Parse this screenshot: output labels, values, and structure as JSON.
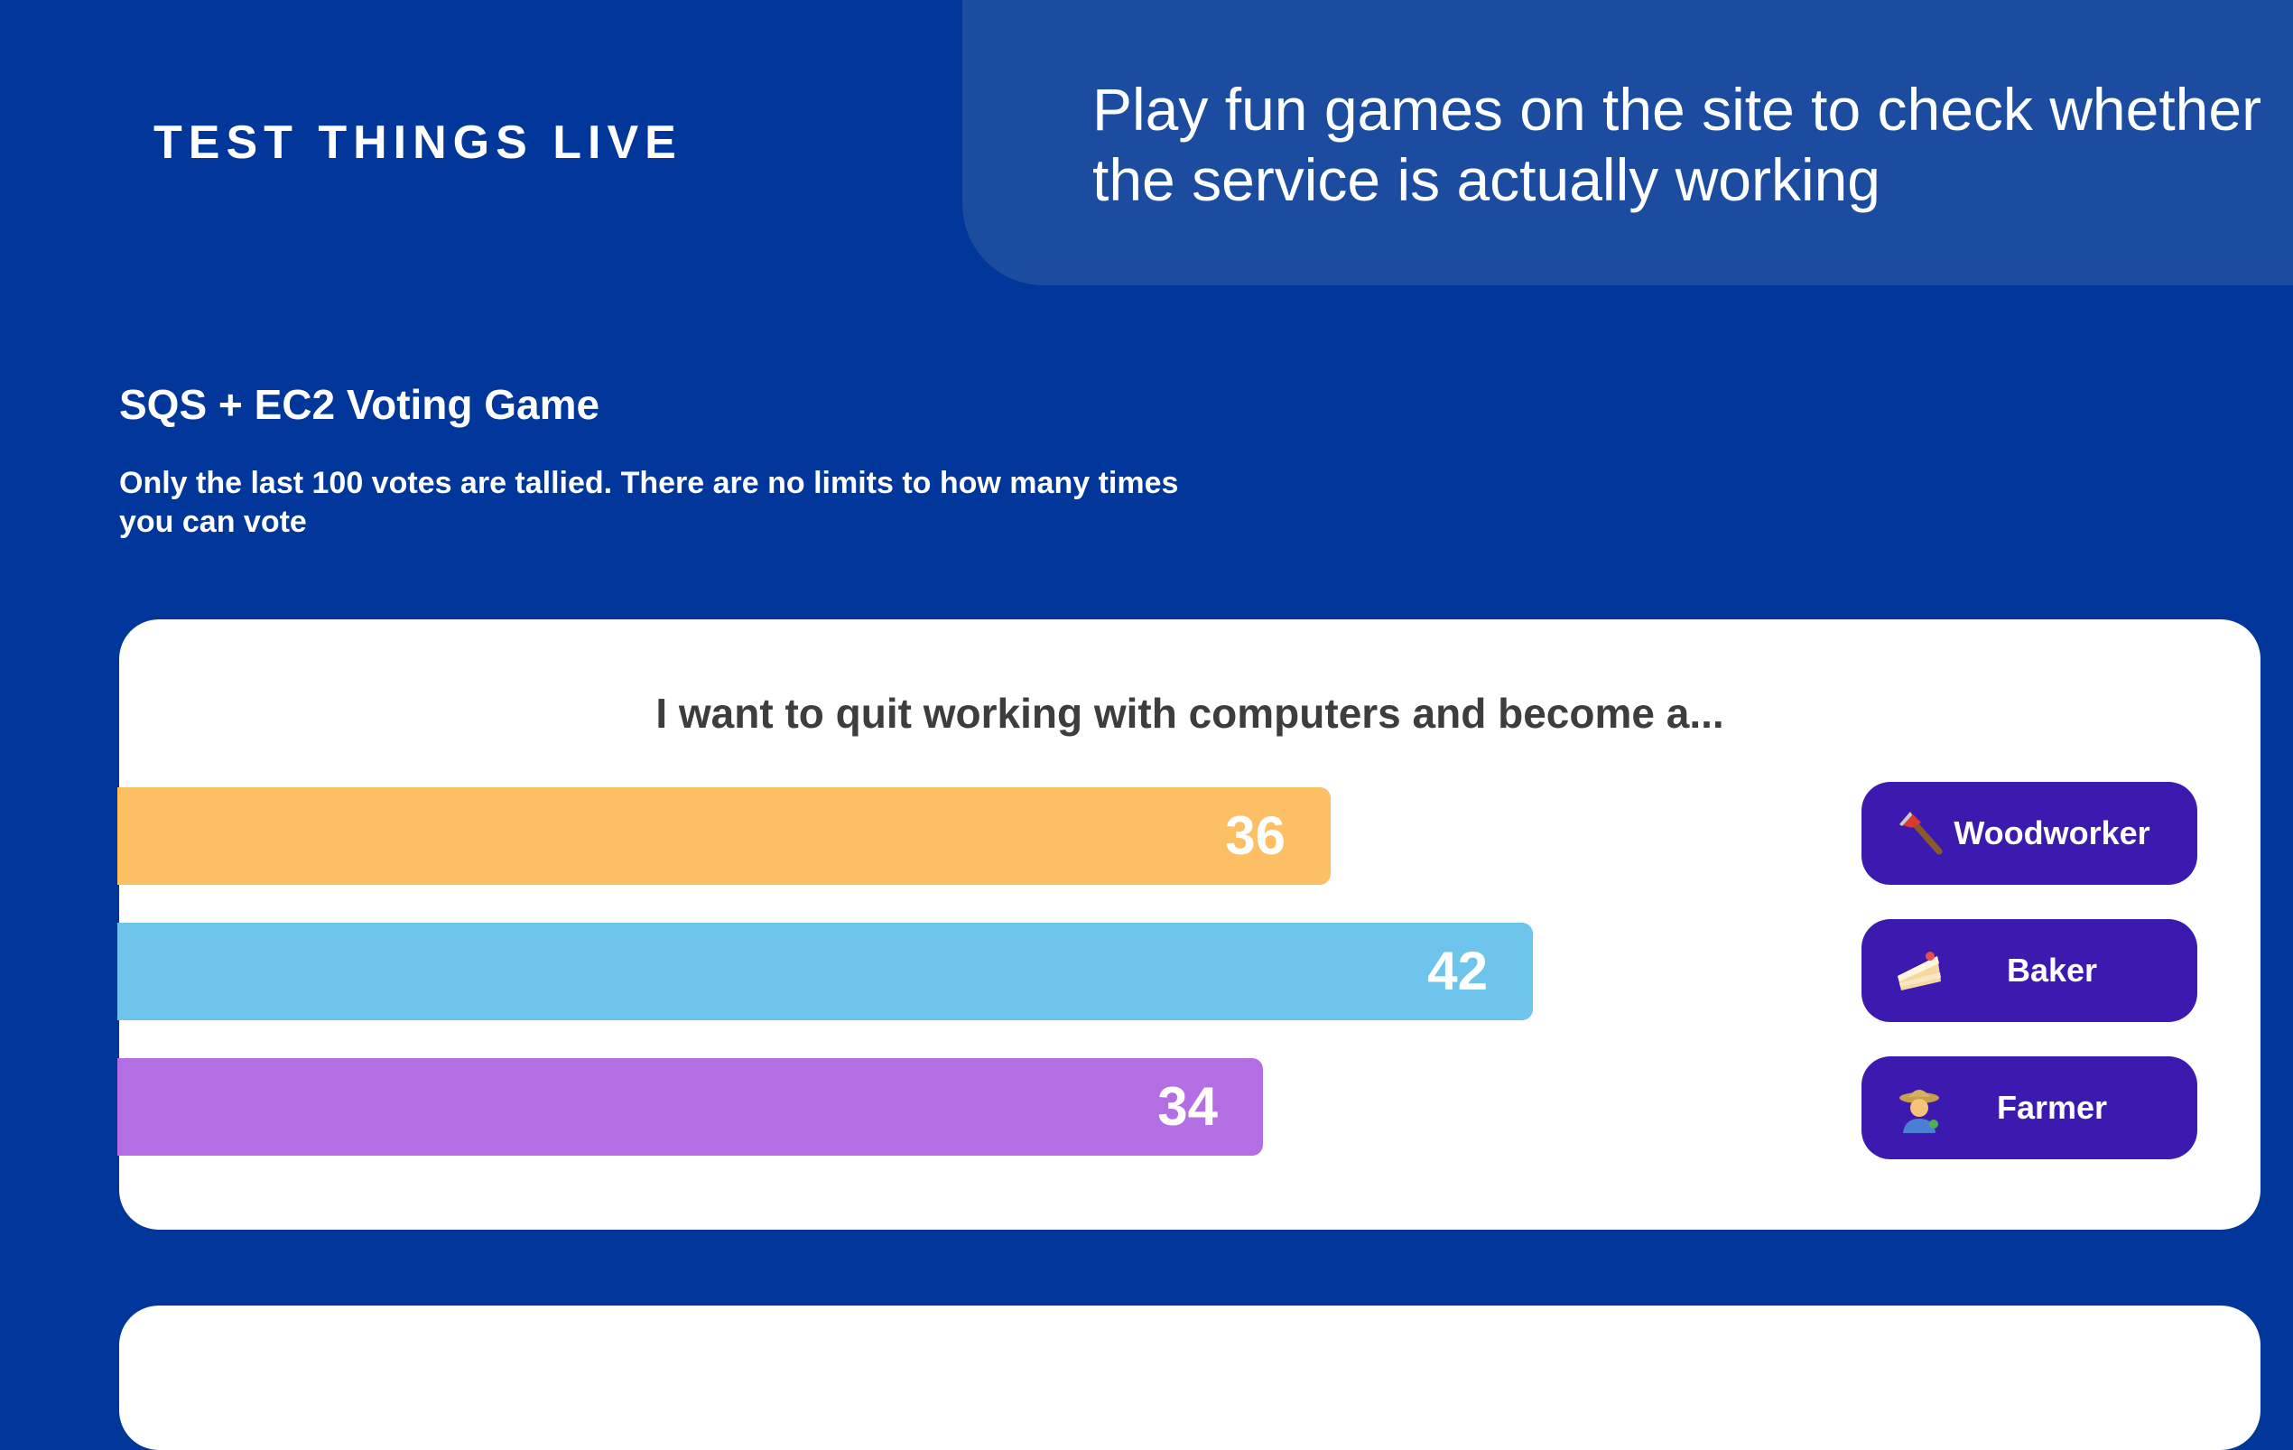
{
  "header": {
    "brand": "TEST THINGS LIVE",
    "tagline": "Play fun games on the site to check whether the service is actually working"
  },
  "section": {
    "title": "SQS + EC2 Voting Game",
    "description": "Only the last 100 votes are tallied. There are no limits to how many times you can vote"
  },
  "poll": {
    "question": "I want to quit working with computers and become a...",
    "max_value": 49.3,
    "options": [
      {
        "label": "Woodworker",
        "icon": "axe-icon",
        "votes": 36,
        "votes_label": "36",
        "color": "#fcbf64"
      },
      {
        "label": "Baker",
        "icon": "cake-icon",
        "votes": 42,
        "votes_label": "42",
        "color": "#6ec5ec"
      },
      {
        "label": "Farmer",
        "icon": "farmer-icon",
        "votes": 34,
        "votes_label": "34",
        "color": "#b46ee4"
      }
    ]
  }
}
